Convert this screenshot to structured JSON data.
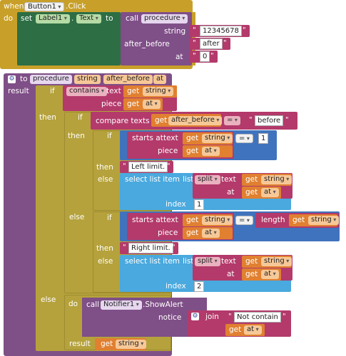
{
  "event": {
    "when": "when",
    "component": "Button1",
    "event_name": ".Click",
    "do": "do",
    "set": "set",
    "set_component": "Label1",
    "set_dot": ".",
    "set_property": "Text",
    "to": "to",
    "call": "call",
    "call_proc": "procedure",
    "arg1_label": "string",
    "arg1_value": "12345678",
    "arg2_label": "after_before",
    "arg2_value": "after",
    "arg3_label": "at",
    "arg3_value": "0"
  },
  "proc": {
    "to": "to",
    "name": "procedure",
    "param1": "string",
    "param2": "after_before",
    "param3": "at",
    "result": "result",
    "if": "if",
    "then": "then",
    "else": "else",
    "contains": "contains",
    "text": "text",
    "get": "get",
    "piece": "piece",
    "compare": "compare texts",
    "eq": "=",
    "before": "before",
    "starts_at": "starts at",
    "one": "1",
    "two": "2",
    "left_limit": "Left limit.",
    "right_limit": "Right limit.",
    "select_item": "select list item",
    "list": "list",
    "split": "split",
    "at": "at",
    "index": "index",
    "length": "length",
    "do": "do",
    "call": "call",
    "notifier": "Notifier1",
    "show_alert": ".ShowAlert",
    "notice": "notice",
    "join": "join",
    "not_contain": "Not contain",
    "q": "\""
  },
  "colors": {
    "event_gold": "#c8a029",
    "setter_green": "#2d6e45",
    "proc_purple": "#7f4f87",
    "logic_gold": "#b5a23c",
    "text_pink": "#b33a6b",
    "var_orange": "#e08030",
    "math_blue": "#3f73bd",
    "list_cyan": "#4aa9de",
    "notifier_blue": "#3a4fa0"
  }
}
